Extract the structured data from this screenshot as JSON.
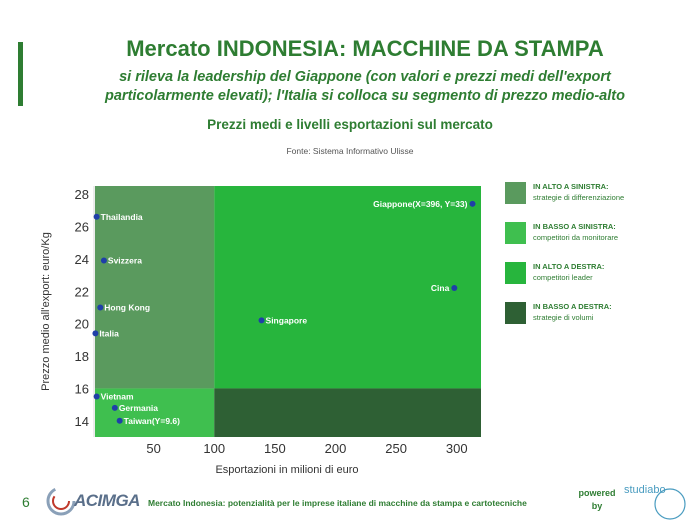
{
  "header": {
    "title": "Mercato INDONESIA: MACCHINE DA STAMPA",
    "subtitle_line1": "si rileva la leadership del Giappone (con valori e prezzi medi dell'export",
    "subtitle_line2": "particolarmente elevati); l'Italia si colloca su segmento di prezzo medio-alto",
    "chart_title": "Prezzi medi e livelli esportazioni sul mercato",
    "source": "Fonte: Sistema Informativo Ulisse"
  },
  "chart_data": {
    "type": "scatter",
    "title": "Prezzi medi e livelli esportazioni sul mercato",
    "xlabel": "Esportazioni in milioni di euro",
    "ylabel": "Prezzo medio all'export: euro/Kg",
    "xlim": [
      0,
      320
    ],
    "ylim": [
      13,
      28.5
    ],
    "xticks": [
      50,
      100,
      150,
      200,
      250,
      300
    ],
    "yticks": [
      14,
      16,
      18,
      20,
      22,
      24,
      26,
      28
    ],
    "grid": false,
    "legend_position": "right",
    "quadrant_split": {
      "x": 100,
      "y": 16
    },
    "quadrants": [
      {
        "key": "top_left",
        "title": "IN ALTO A SINISTRA:",
        "description": "strategie di differenziazione",
        "color": "#5a9a5e"
      },
      {
        "key": "bottom_left",
        "title": "IN BASSO A SINISTRA:",
        "description": "competitori da monitorare",
        "color": "#3fbf4f"
      },
      {
        "key": "top_right",
        "title": "IN ALTO A DESTRA:",
        "description": "competitori leader",
        "color": "#27b53d"
      },
      {
        "key": "bottom_right",
        "title": "IN BASSO A DESTRA:",
        "description": "strategie di volumi",
        "color": "#2e6034"
      }
    ],
    "points": [
      {
        "label": "Thailandia",
        "x": 3,
        "y": 26.6
      },
      {
        "label": "Svizzera",
        "x": 9,
        "y": 23.9
      },
      {
        "label": "Hong Kong",
        "x": 6,
        "y": 21.0
      },
      {
        "label": "Italia",
        "x": 2,
        "y": 19.4
      },
      {
        "label": "Singapore",
        "x": 139,
        "y": 20.2
      },
      {
        "label": "Cina",
        "x": 298,
        "y": 22.2
      },
      {
        "label": "Giappone(X=396, Y=33)",
        "x": 313,
        "y": 27.4
      },
      {
        "label": "Vietnam",
        "x": 3,
        "y": 15.5
      },
      {
        "label": "Germania",
        "x": 18,
        "y": 14.8
      },
      {
        "label": "Taiwan(Y=9.6)",
        "x": 22,
        "y": 14.0
      }
    ]
  },
  "footer": {
    "page_number": "6",
    "logo_text": "ACIMGA",
    "text": "Mercato Indonesia: potenzialità per le imprese italiane di macchine da stampa e cartotecniche",
    "powered_line1": "powered",
    "powered_line2": "by",
    "partner_logo": "studiabo"
  },
  "colors": {
    "accent": "#2e7d32",
    "point": "#1f3fa8"
  }
}
